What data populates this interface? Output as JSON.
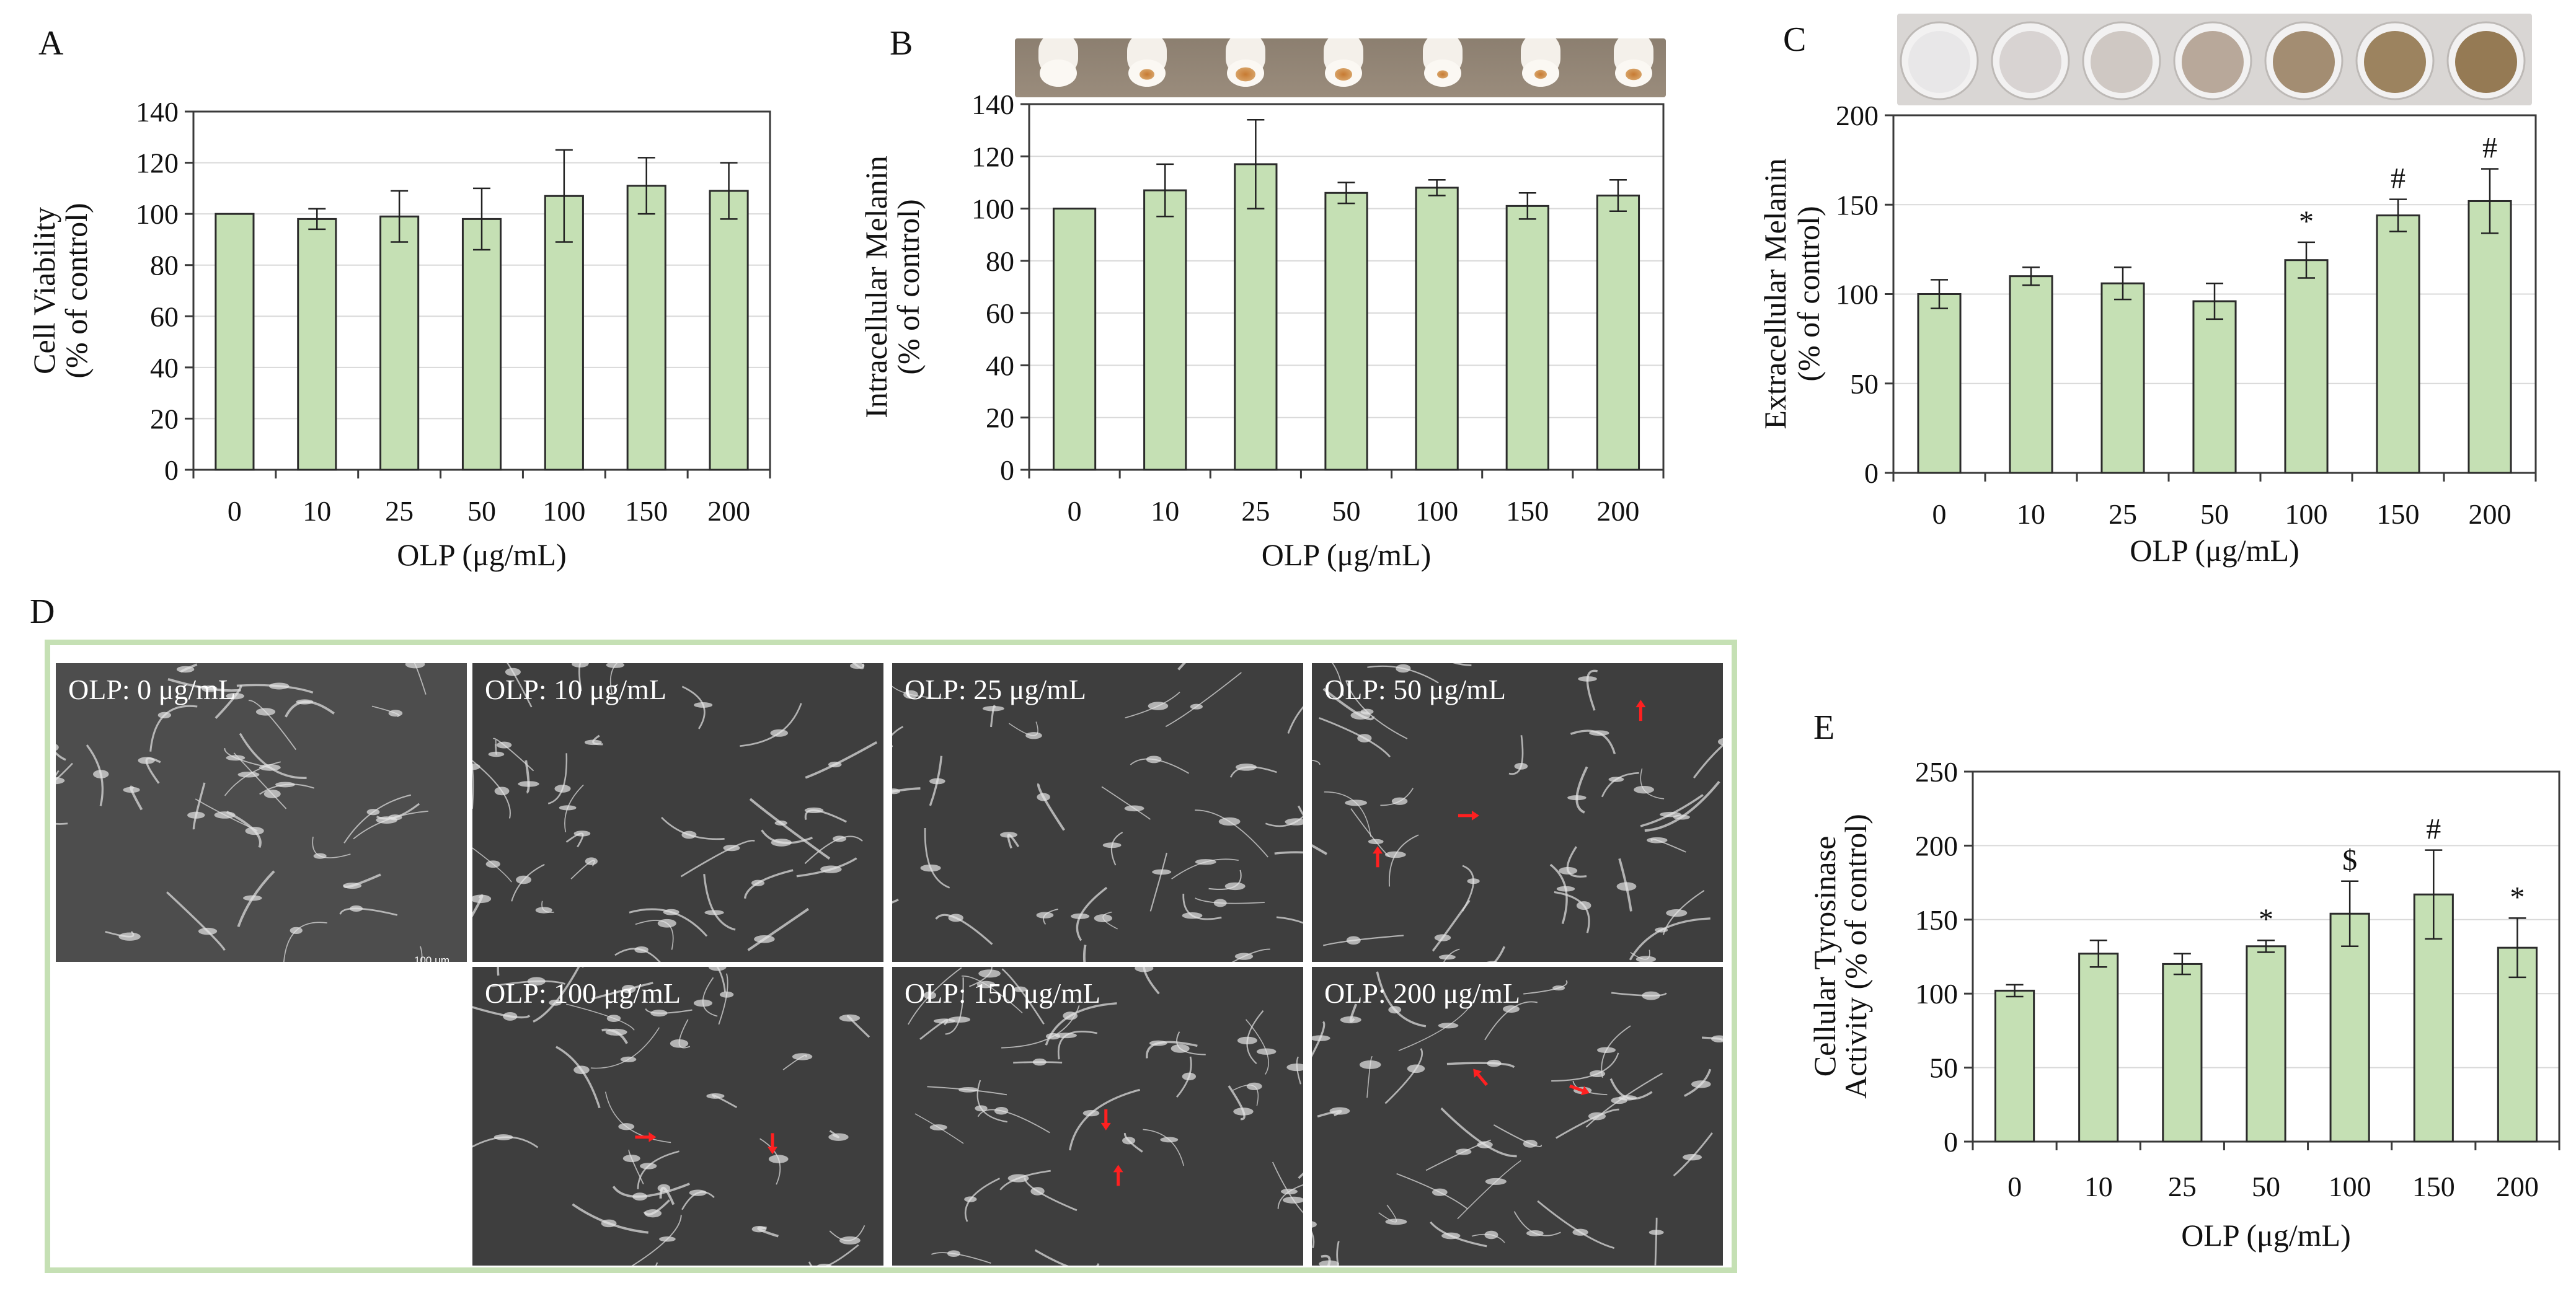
{
  "panels": {
    "A": "A",
    "B": "B",
    "C": "C",
    "D": "D",
    "E": "E"
  },
  "colors": {
    "bar_fill": "#c5e0b4",
    "bar_stroke": "#2b2b2b",
    "frame": "#c5e0b4",
    "arrow": "#ff2020"
  },
  "chart_data": [
    {
      "panel": "A",
      "type": "bar",
      "categories": [
        "0",
        "10",
        "25",
        "50",
        "100",
        "150",
        "200"
      ],
      "values": [
        100,
        98,
        99,
        98,
        107,
        111,
        109
      ],
      "errors": [
        0,
        4,
        10,
        12,
        18,
        11,
        11
      ],
      "annotations": [
        "",
        "",
        "",
        "",
        "",
        "",
        ""
      ],
      "xlabel": "OLP (μg/mL)",
      "ylabel": [
        "Cell Viability",
        "(% of control)"
      ],
      "ylim": [
        0,
        140
      ],
      "yticks": [
        0,
        20,
        40,
        60,
        80,
        100,
        120,
        140
      ],
      "grid": true
    },
    {
      "panel": "B",
      "type": "bar",
      "categories": [
        "0",
        "10",
        "25",
        "50",
        "100",
        "150",
        "200"
      ],
      "values": [
        100,
        107,
        117,
        106,
        108,
        101,
        105
      ],
      "errors": [
        0,
        10,
        17,
        4,
        3,
        5,
        6
      ],
      "annotations": [
        "",
        "",
        "",
        "",
        "",
        "",
        ""
      ],
      "xlabel": "OLP (μg/mL)",
      "ylabel": [
        "Intracellular Melanin",
        "(% of control)"
      ],
      "ylim": [
        0,
        140
      ],
      "yticks": [
        0,
        20,
        40,
        60,
        80,
        100,
        120,
        140
      ],
      "grid": true
    },
    {
      "panel": "C",
      "type": "bar",
      "categories": [
        "0",
        "10",
        "25",
        "50",
        "100",
        "150",
        "200"
      ],
      "values": [
        100,
        110,
        106,
        96,
        119,
        144,
        152
      ],
      "errors": [
        8,
        5,
        9,
        10,
        10,
        9,
        18
      ],
      "annotations": [
        "",
        "",
        "",
        "",
        "*",
        "#",
        "#"
      ],
      "xlabel": "OLP (μg/mL)",
      "ylabel": [
        "Extracellular Melanin",
        "(% of control)"
      ],
      "ylim": [
        0,
        200
      ],
      "yticks": [
        0,
        50,
        100,
        150,
        200
      ],
      "grid": true
    },
    {
      "panel": "E",
      "type": "bar",
      "categories": [
        "0",
        "10",
        "25",
        "50",
        "100",
        "150",
        "200"
      ],
      "values": [
        102,
        127,
        120,
        132,
        154,
        167,
        131
      ],
      "errors": [
        4,
        9,
        7,
        4,
        22,
        30,
        20
      ],
      "annotations": [
        "",
        "",
        "",
        "*",
        "$",
        "#",
        "*"
      ],
      "xlabel": "OLP (μg/mL)",
      "ylabel": [
        "Cellular Tyrosinase",
        "Activity (% of control)"
      ],
      "ylim": [
        0,
        250
      ],
      "yticks": [
        0,
        50,
        100,
        150,
        200,
        250
      ],
      "grid": true
    }
  ],
  "micrographs": [
    {
      "label": "OLP: 0 μg/mL",
      "arrows": []
    },
    {
      "label": "OLP: 10 μg/mL",
      "arrows": []
    },
    {
      "label": "OLP: 25 μg/mL",
      "arrows": []
    },
    {
      "label": "OLP: 50 μg/mL",
      "arrows": [
        [
          0.8,
          0.16,
          -90
        ],
        [
          0.38,
          0.51,
          0
        ],
        [
          0.16,
          0.65,
          -90
        ]
      ]
    },
    {
      "label": "OLP: 100 μg/mL",
      "arrows": [
        [
          0.42,
          0.57,
          0
        ],
        [
          0.73,
          0.59,
          90
        ]
      ]
    },
    {
      "label": "OLP: 150 μg/mL",
      "arrows": [
        [
          0.52,
          0.51,
          90
        ],
        [
          0.55,
          0.7,
          -90
        ]
      ]
    },
    {
      "label": "OLP: 200 μg/mL",
      "arrows": [
        [
          0.41,
          0.37,
          -130
        ],
        [
          0.65,
          0.41,
          20
        ]
      ]
    }
  ],
  "scalebar_label": "100 μm"
}
